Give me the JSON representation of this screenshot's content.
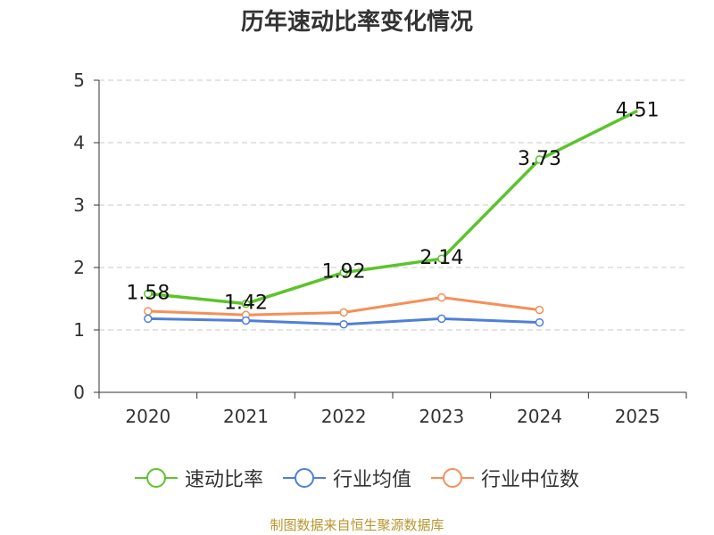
{
  "chart_data": {
    "type": "line",
    "title": "历年速动比率变化情况",
    "categories": [
      "2020",
      "2021",
      "2022",
      "2023",
      "2024",
      "2025"
    ],
    "ylim": [
      0,
      5
    ],
    "yticks": [
      0,
      1,
      2,
      3,
      4,
      5
    ],
    "grid": true,
    "legend_position": "bottom",
    "series": [
      {
        "name": "速动比率",
        "color": "#5bc42b",
        "values": [
          1.58,
          1.42,
          1.92,
          2.14,
          3.73,
          4.51
        ],
        "labels": [
          "1.58",
          "1.42",
          "1.92",
          "2.14",
          "3.73",
          "4.51"
        ]
      },
      {
        "name": "行业均值",
        "color": "#4f7fd9",
        "values": [
          1.18,
          1.15,
          1.09,
          1.18,
          1.12,
          null
        ]
      },
      {
        "name": "行业中位数",
        "color": "#f58f58",
        "values": [
          1.3,
          1.24,
          1.28,
          1.52,
          1.32,
          null
        ]
      }
    ],
    "source": "制图数据来自恒生聚源数据库"
  }
}
